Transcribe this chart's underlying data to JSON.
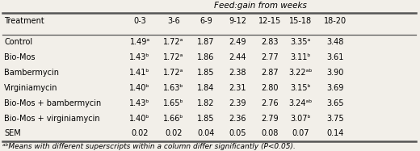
{
  "title": "Feed:gain from weeks",
  "col_headers": [
    "Treatment",
    "0-3",
    "3-6",
    "6-9",
    "9-12",
    "12-15",
    "15-18",
    "18-20"
  ],
  "rows": [
    [
      "Control",
      "1.49ᵃ",
      "1.72ᵃ",
      "1.87",
      "2.49",
      "2.83",
      "3.35ᵃ",
      "3.48"
    ],
    [
      "Bio-Mos",
      "1.43ᵇ",
      "1.72ᵃ",
      "1.86",
      "2.44",
      "2.77",
      "3.11ᵇ",
      "3.61"
    ],
    [
      "Bambermycin",
      "1.41ᵇ",
      "1.72ᵃ",
      "1.85",
      "2.38",
      "2.87",
      "3.22ᵃᵇ",
      "3.90"
    ],
    [
      "Virginiamycin",
      "1.40ᵇ",
      "1.63ᵇ",
      "1.84",
      "2.31",
      "2.80",
      "3.15ᵇ",
      "3.69"
    ],
    [
      "Bio-Mos + bambermycin",
      "1.43ᵇ",
      "1.65ᵇ",
      "1.82",
      "2.39",
      "2.76",
      "3.24ᵃᵇ",
      "3.65"
    ],
    [
      "Bio-Mos + virginiamycin",
      "1.40ᵇ",
      "1.66ᵇ",
      "1.85",
      "2.36",
      "2.79",
      "3.07ᵇ",
      "3.75"
    ],
    [
      "SEM",
      "0.02",
      "0.02",
      "0.04",
      "0.05",
      "0.08",
      "0.07",
      "0.14"
    ]
  ],
  "footnote": "ᵃᵇMeans with different superscripts within a column differ significantly (P<0.05).",
  "bg_color": "#f2efe9",
  "line_color": "#555555",
  "font_size": 7.0,
  "title_font_size": 7.5,
  "footnote_font_size": 6.5
}
